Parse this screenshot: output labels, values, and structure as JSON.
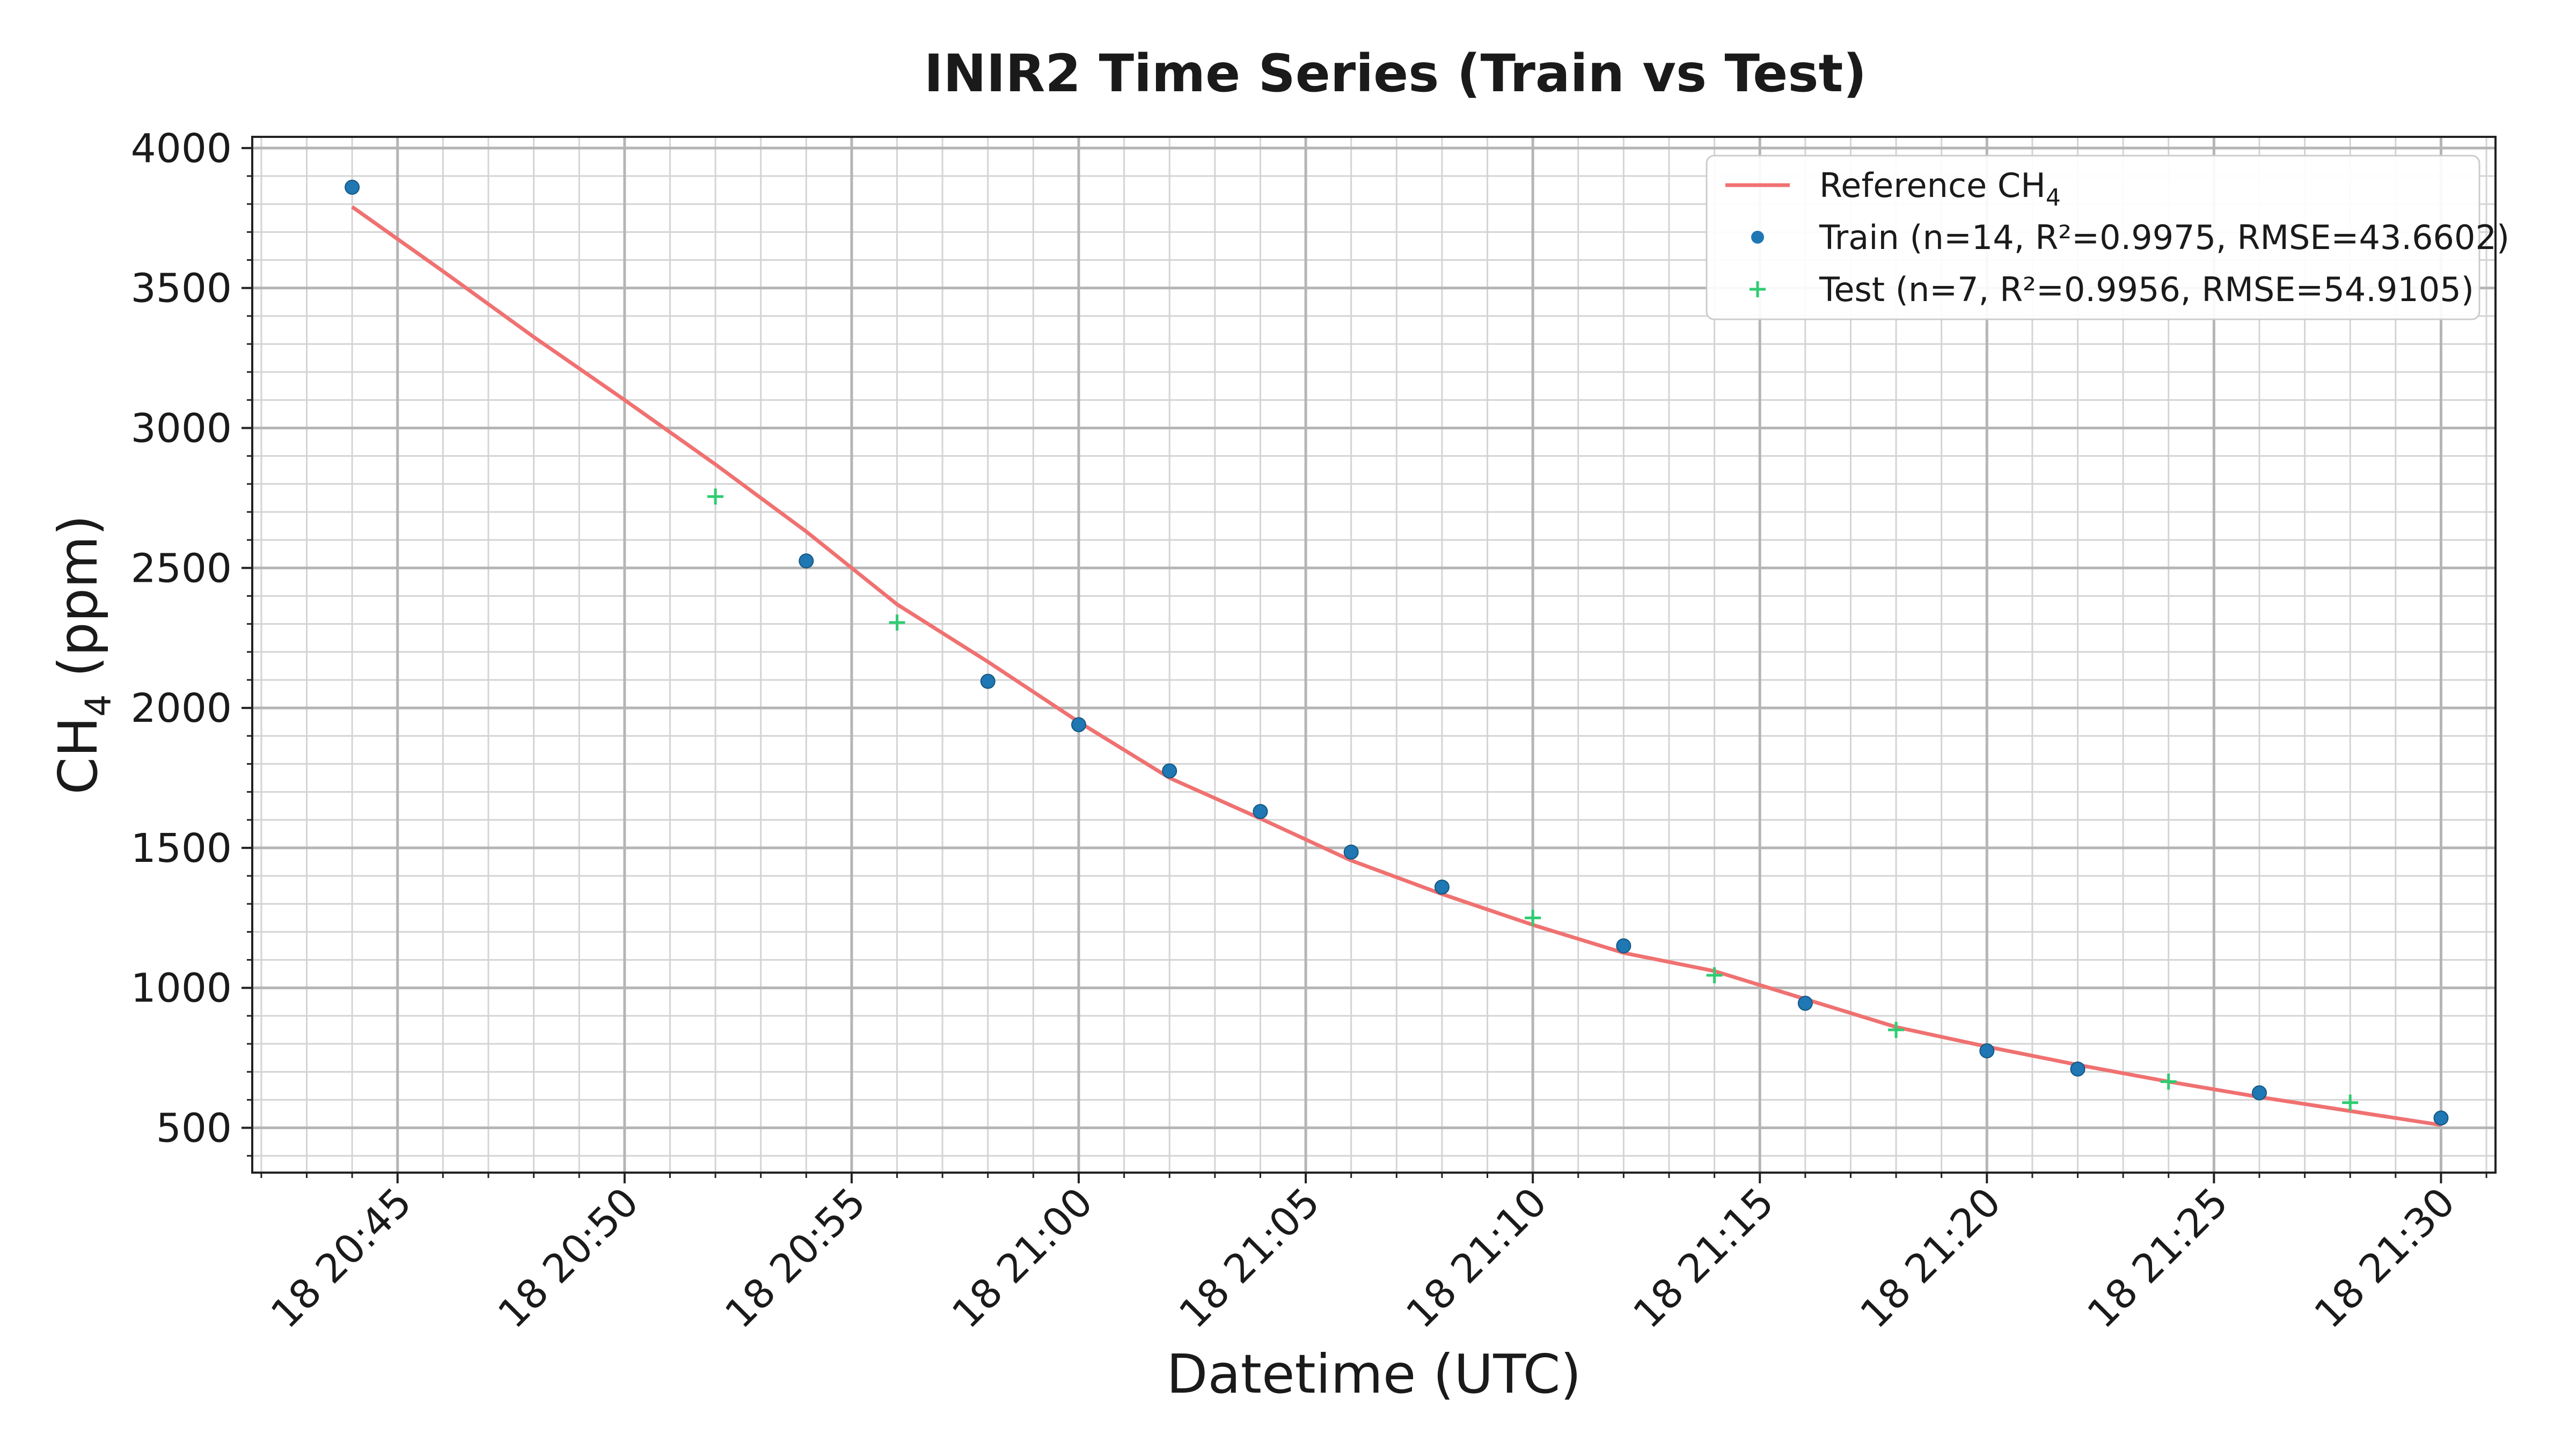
{
  "chart_data": {
    "type": "line",
    "title": "INIR2 Time Series (Train vs Test)",
    "xlabel": "Datetime (UTC)",
    "ylabel_main": "CH",
    "ylabel_sub": "4",
    "ylabel_suffix": " (ppm)",
    "x_unit": "minutes",
    "xlim": [
      "18 20:41:48",
      "18 21:31:12"
    ],
    "ylim": [
      340,
      4040
    ],
    "yticks": [
      500,
      1000,
      1500,
      2000,
      2500,
      3000,
      3500,
      4000
    ],
    "ytick_labels": [
      "500",
      "1000",
      "1500",
      "2000",
      "2500",
      "3000",
      "3500",
      "4000"
    ],
    "xticks": [
      "18 20:45",
      "18 20:50",
      "18 20:55",
      "18 21:00",
      "18 21:05",
      "18 21:10",
      "18 21:15",
      "18 21:20",
      "18 21:25",
      "18 21:30"
    ],
    "xtick_labels": [
      "18 20:45",
      "18 20:50",
      "18 20:55",
      "18 21:00",
      "18 21:05",
      "18 21:10",
      "18 21:15",
      "18 21:20",
      "18 21:25",
      "18 21:30"
    ],
    "grid": true,
    "minor_grid": true,
    "legend_position": "top-right",
    "series": [
      {
        "name": "Reference CH",
        "name_sub": "4",
        "kind": "line",
        "color": "#f07171",
        "x": [
          "18 20:44",
          "18 20:46",
          "18 20:48",
          "18 20:50",
          "18 20:52",
          "18 20:54",
          "18 20:56",
          "18 20:58",
          "18 21:00",
          "18 21:02",
          "18 21:04",
          "18 21:06",
          "18 21:08",
          "18 21:10",
          "18 21:12",
          "18 21:14",
          "18 21:16",
          "18 21:18",
          "18 21:20",
          "18 21:22",
          "18 21:24",
          "18 21:26",
          "18 21:28",
          "18 21:30"
        ],
        "y": [
          3790,
          3560,
          3325,
          3100,
          2870,
          2630,
          2370,
          2165,
          1950,
          1750,
          1605,
          1455,
          1335,
          1225,
          1125,
          1060,
          960,
          860,
          790,
          725,
          665,
          610,
          560,
          510
        ]
      },
      {
        "name": "Train (n=14, R²=0.9975, RMSE=43.6602)",
        "kind": "scatter",
        "marker": "dot",
        "color": "#1f77b4",
        "x": [
          "18 20:44",
          "18 20:54",
          "18 20:58",
          "18 21:00",
          "18 21:02",
          "18 21:04",
          "18 21:06",
          "18 21:08",
          "18 21:12",
          "18 21:16",
          "18 21:20",
          "18 21:22",
          "18 21:26",
          "18 21:30"
        ],
        "y": [
          3860,
          2525,
          2095,
          1940,
          1775,
          1630,
          1485,
          1360,
          1150,
          945,
          775,
          710,
          625,
          535
        ]
      },
      {
        "name": "Test (n=7, R²=0.9956, RMSE=54.9105)",
        "kind": "scatter",
        "marker": "plus",
        "color": "#2ecc71",
        "x": [
          "18 20:52",
          "18 20:56",
          "18 21:10",
          "18 21:14",
          "18 21:18",
          "18 21:24",
          "18 21:28"
        ],
        "y": [
          2755,
          2305,
          1250,
          1045,
          850,
          665,
          590
        ]
      }
    ]
  }
}
